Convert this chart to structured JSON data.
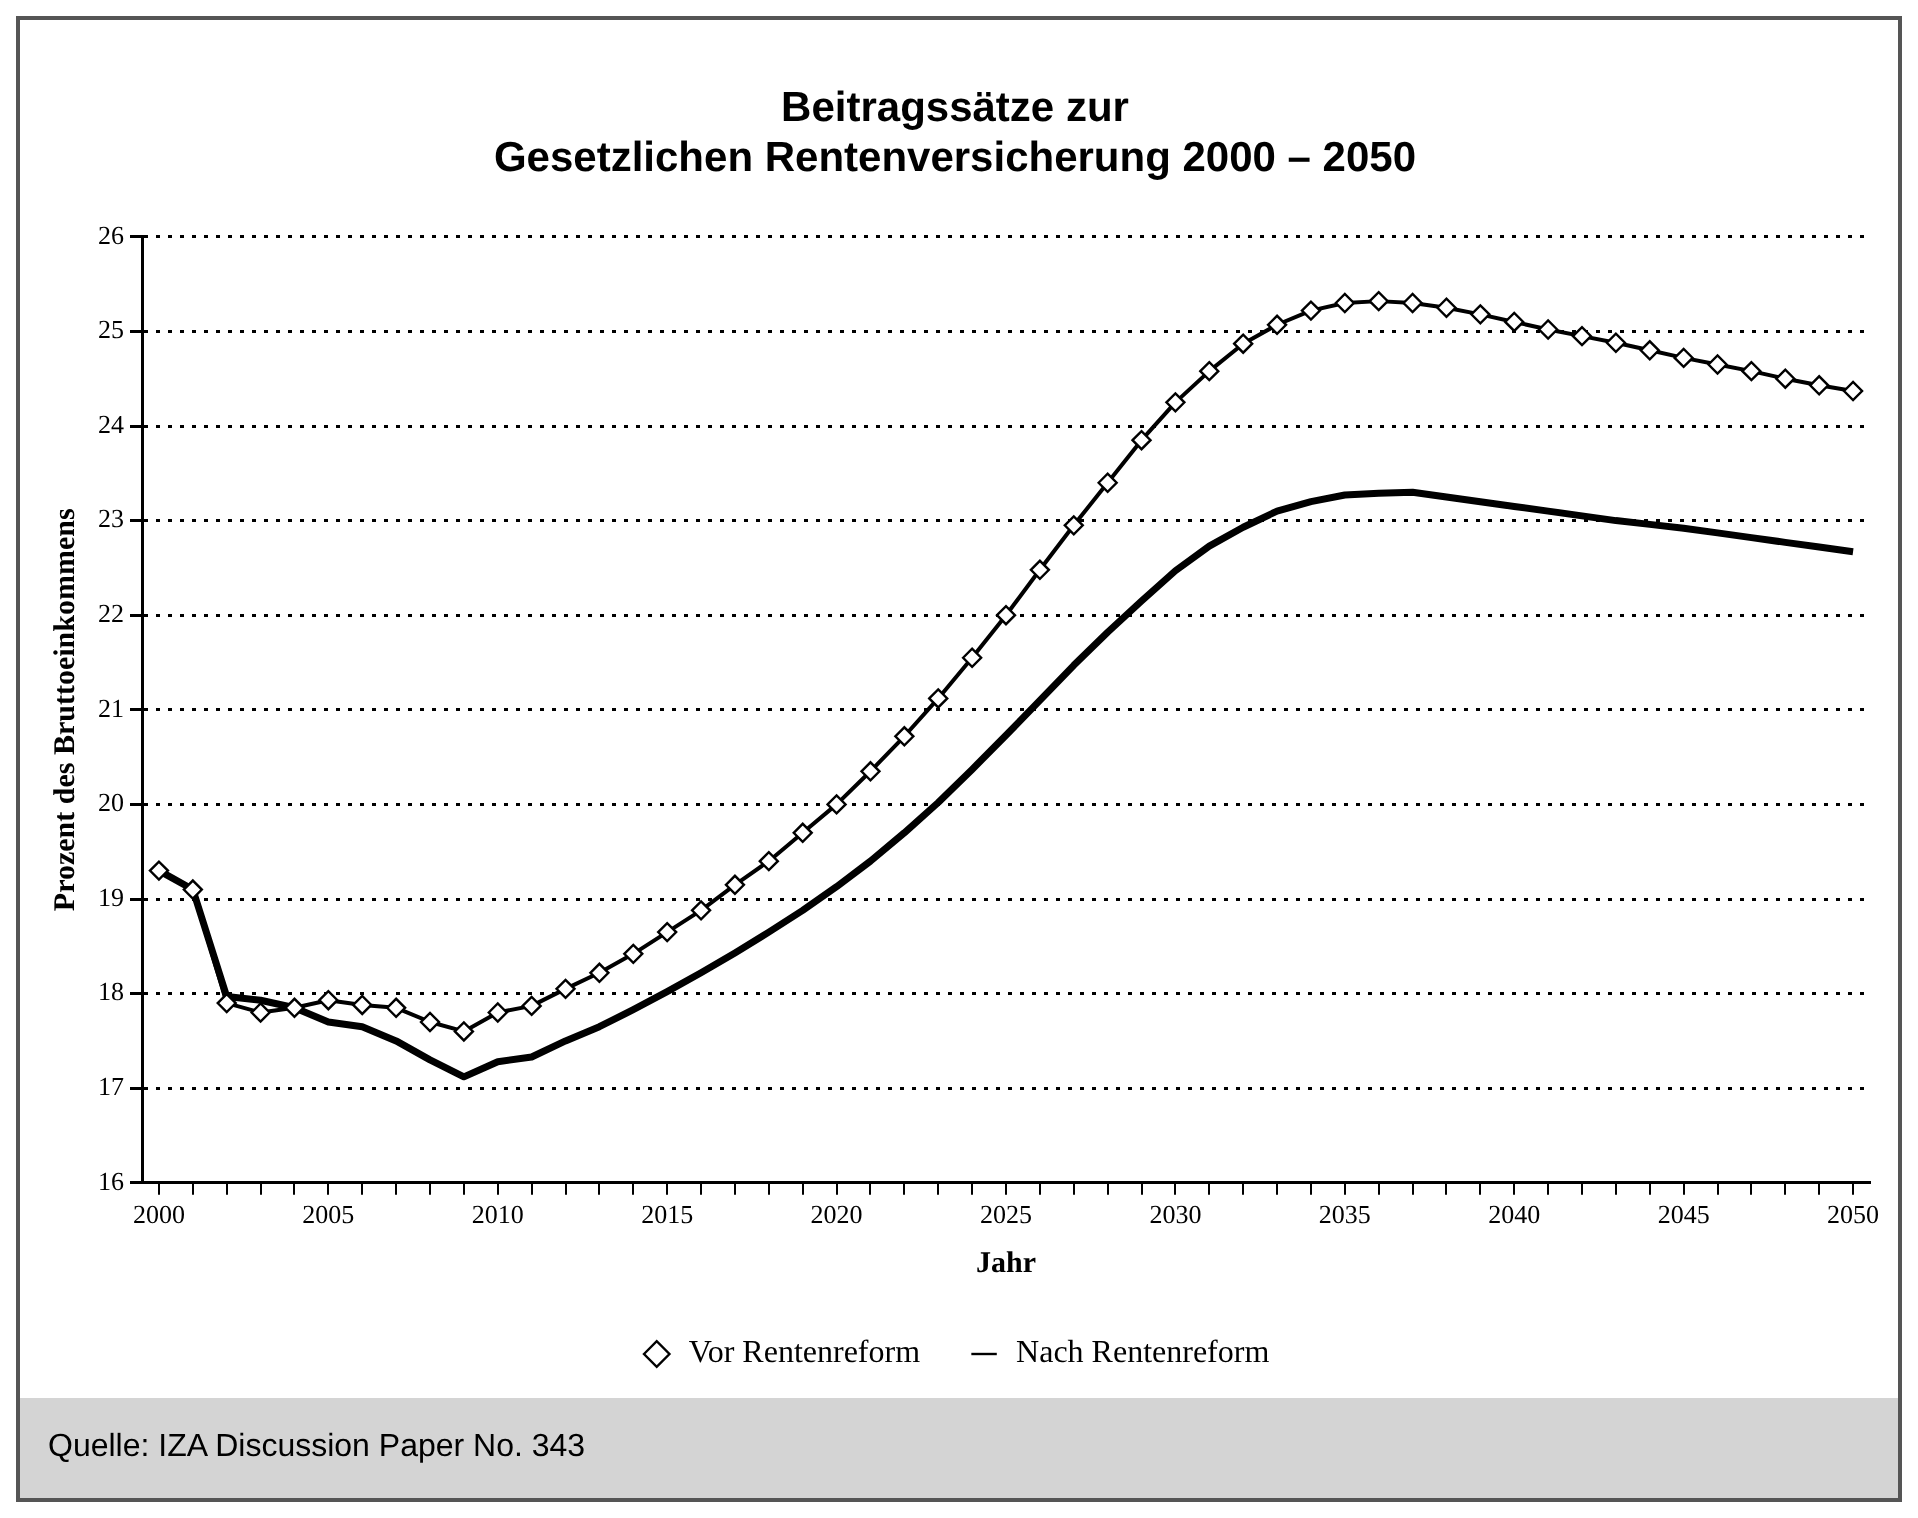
{
  "chart_data": {
    "type": "line",
    "title": "Beitragssätze zur\nGesetzlichen Rentenversicherung 2000 – 2050",
    "xlabel": "Jahr",
    "ylabel": "Prozent des Bruttoeinkommens",
    "categories": [
      "2000",
      null,
      null,
      null,
      null,
      "2005",
      null,
      null,
      null,
      null,
      "2010",
      null,
      null,
      null,
      null,
      "2015",
      null,
      null,
      null,
      null,
      "2020",
      null,
      null,
      null,
      null,
      "2025",
      null,
      null,
      null,
      null,
      "2030",
      null,
      null,
      null,
      null,
      "2035",
      null,
      null,
      null,
      null,
      "2040",
      null,
      null,
      null,
      null,
      "2045",
      null,
      null,
      null,
      null,
      "2050"
    ],
    "series": [
      {
        "name": "Vor Rentenreform",
        "color": "#000000",
        "marker": "diamond",
        "values": [
          19.3,
          19.1,
          17.9,
          17.8,
          17.85,
          17.93,
          17.88,
          17.85,
          17.7,
          17.6,
          17.8,
          17.87,
          18.05,
          18.22,
          18.42,
          18.65,
          18.88,
          19.15,
          19.4,
          19.7,
          20.0,
          20.35,
          20.72,
          21.12,
          21.55,
          22.0,
          22.48,
          22.95,
          23.4,
          23.85,
          24.25,
          24.58,
          24.87,
          25.07,
          25.22,
          25.3,
          25.32,
          25.3,
          25.25,
          25.18,
          25.1,
          25.02,
          24.95,
          24.88,
          24.8,
          24.72,
          24.65,
          24.58,
          24.5,
          24.43,
          24.37
        ]
      },
      {
        "name": "Nach Rentenreform",
        "color": "#000000",
        "marker": "none",
        "values": [
          19.3,
          19.1,
          17.97,
          17.93,
          17.85,
          17.7,
          17.65,
          17.5,
          17.3,
          17.12,
          17.28,
          17.33,
          17.5,
          17.65,
          17.83,
          18.02,
          18.22,
          18.43,
          18.65,
          18.88,
          19.13,
          19.4,
          19.7,
          20.02,
          20.37,
          20.73,
          21.1,
          21.47,
          21.82,
          22.15,
          22.47,
          22.73,
          22.93,
          23.1,
          23.2,
          23.27,
          23.29,
          23.3,
          23.25,
          23.2,
          23.15,
          23.1,
          23.05,
          23.0,
          22.96,
          22.92,
          22.87,
          22.82,
          22.77,
          22.72,
          22.67
        ]
      }
    ],
    "ylim": [
      16,
      26
    ],
    "yticks": [
      16,
      17,
      18,
      19,
      20,
      21,
      22,
      23,
      24,
      25,
      26
    ],
    "grid": "y",
    "legend": "bottom",
    "line_style": "solid",
    "annotations": [
      "Quelle: IZA Discussion Paper No. 343"
    ]
  }
}
